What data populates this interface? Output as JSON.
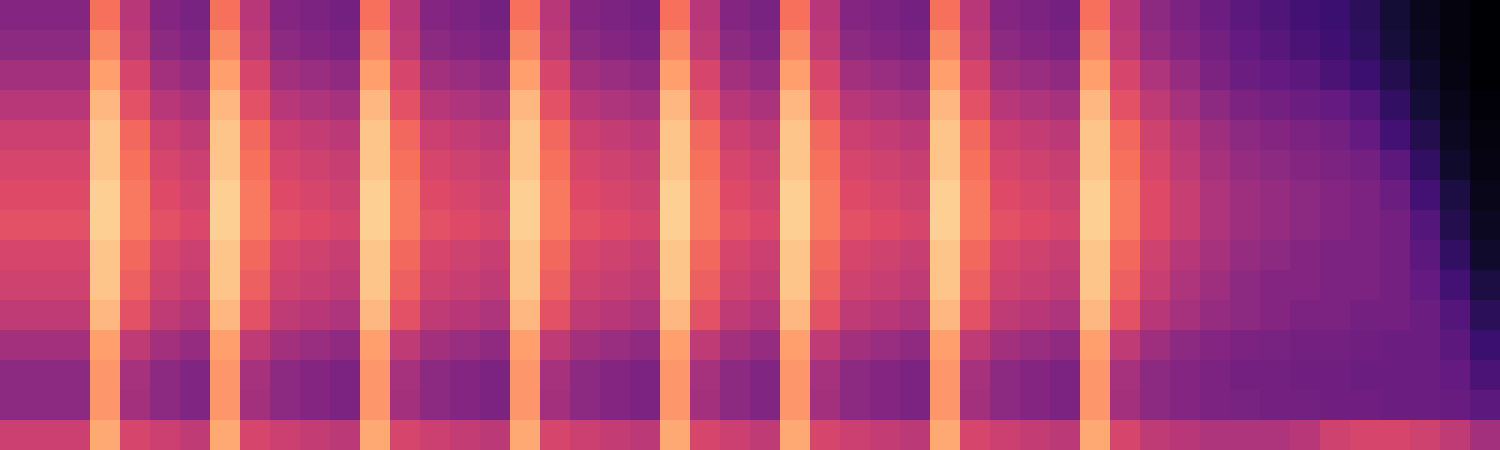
{
  "chart_data": {
    "type": "heatmap",
    "color": "magma",
    "tick_labels": false,
    "xlim": [
      0,
      50
    ],
    "ylim": [
      0,
      15
    ],
    "zlim": [
      0,
      100
    ],
    "cells": [
      [
        38,
        38,
        38,
        70,
        50,
        38,
        35,
        70,
        50,
        38,
        36,
        34,
        70,
        50,
        38,
        36,
        34,
        70,
        50,
        38,
        36,
        34,
        70,
        50,
        38,
        35,
        70,
        50,
        38,
        36,
        34,
        70,
        50,
        38,
        36,
        34,
        70,
        50,
        40,
        36,
        32,
        28,
        25,
        22,
        20,
        16,
        10,
        5,
        2,
        0
      ],
      [
        40,
        40,
        40,
        75,
        52,
        40,
        37,
        75,
        52,
        40,
        38,
        36,
        75,
        52,
        40,
        38,
        36,
        75,
        52,
        40,
        38,
        36,
        75,
        52,
        40,
        37,
        75,
        52,
        40,
        38,
        36,
        75,
        52,
        40,
        38,
        36,
        75,
        52,
        42,
        38,
        34,
        30,
        27,
        24,
        21,
        17,
        11,
        6,
        2,
        0
      ],
      [
        45,
        45,
        45,
        80,
        58,
        45,
        42,
        80,
        58,
        45,
        43,
        41,
        80,
        58,
        45,
        43,
        41,
        80,
        58,
        45,
        43,
        41,
        80,
        58,
        45,
        42,
        80,
        58,
        45,
        43,
        41,
        80,
        58,
        45,
        43,
        41,
        80,
        58,
        48,
        42,
        36,
        32,
        30,
        28,
        24,
        20,
        14,
        8,
        3,
        0
      ],
      [
        50,
        50,
        50,
        85,
        62,
        50,
        47,
        85,
        62,
        50,
        48,
        46,
        85,
        62,
        50,
        48,
        46,
        85,
        62,
        50,
        48,
        46,
        85,
        62,
        50,
        47,
        85,
        62,
        50,
        48,
        46,
        85,
        62,
        50,
        48,
        46,
        85,
        62,
        52,
        46,
        40,
        36,
        34,
        32,
        30,
        26,
        18,
        10,
        4,
        1
      ],
      [
        55,
        55,
        55,
        88,
        68,
        55,
        52,
        88,
        68,
        55,
        53,
        51,
        88,
        68,
        55,
        53,
        51,
        88,
        68,
        55,
        53,
        51,
        88,
        68,
        55,
        52,
        88,
        68,
        55,
        53,
        51,
        88,
        68,
        55,
        53,
        51,
        88,
        68,
        56,
        50,
        44,
        40,
        38,
        36,
        34,
        30,
        22,
        14,
        6,
        2
      ],
      [
        58,
        58,
        58,
        88,
        70,
        58,
        55,
        88,
        70,
        58,
        56,
        54,
        88,
        70,
        58,
        56,
        54,
        88,
        70,
        58,
        56,
        54,
        88,
        70,
        58,
        55,
        88,
        70,
        58,
        56,
        54,
        88,
        70,
        58,
        56,
        54,
        88,
        70,
        58,
        52,
        46,
        42,
        40,
        38,
        36,
        34,
        28,
        18,
        8,
        3
      ],
      [
        60,
        60,
        60,
        90,
        72,
        60,
        57,
        90,
        72,
        60,
        58,
        56,
        90,
        72,
        60,
        58,
        56,
        90,
        72,
        60,
        58,
        56,
        90,
        72,
        60,
        57,
        90,
        72,
        60,
        58,
        56,
        90,
        72,
        60,
        58,
        56,
        90,
        72,
        60,
        54,
        48,
        44,
        42,
        40,
        38,
        36,
        32,
        22,
        12,
        4
      ],
      [
        62,
        62,
        62,
        90,
        72,
        62,
        59,
        90,
        72,
        62,
        60,
        58,
        90,
        72,
        62,
        60,
        58,
        90,
        72,
        62,
        60,
        58,
        90,
        72,
        62,
        59,
        90,
        72,
        62,
        60,
        58,
        90,
        72,
        62,
        60,
        58,
        90,
        72,
        60,
        54,
        48,
        44,
        42,
        40,
        38,
        36,
        34,
        26,
        14,
        6
      ],
      [
        58,
        58,
        58,
        88,
        68,
        58,
        55,
        88,
        68,
        58,
        56,
        54,
        88,
        68,
        58,
        56,
        54,
        88,
        68,
        58,
        56,
        54,
        88,
        68,
        58,
        55,
        88,
        68,
        58,
        56,
        54,
        88,
        68,
        58,
        56,
        54,
        88,
        68,
        56,
        50,
        46,
        42,
        40,
        38,
        36,
        36,
        34,
        28,
        18,
        8
      ],
      [
        56,
        56,
        56,
        88,
        66,
        56,
        53,
        88,
        66,
        56,
        54,
        52,
        88,
        66,
        56,
        54,
        52,
        88,
        66,
        56,
        54,
        52,
        88,
        66,
        56,
        53,
        88,
        66,
        56,
        54,
        52,
        88,
        66,
        56,
        54,
        52,
        88,
        66,
        54,
        48,
        44,
        40,
        38,
        38,
        36,
        36,
        34,
        30,
        22,
        12
      ],
      [
        52,
        52,
        52,
        85,
        62,
        52,
        49,
        85,
        62,
        52,
        50,
        48,
        85,
        62,
        52,
        50,
        48,
        85,
        62,
        52,
        50,
        48,
        85,
        62,
        52,
        49,
        85,
        62,
        52,
        50,
        48,
        85,
        62,
        52,
        50,
        48,
        85,
        62,
        50,
        46,
        42,
        40,
        38,
        36,
        36,
        34,
        34,
        32,
        26,
        16
      ],
      [
        45,
        45,
        45,
        80,
        52,
        45,
        42,
        80,
        52,
        45,
        43,
        41,
        80,
        52,
        45,
        43,
        41,
        80,
        52,
        45,
        43,
        41,
        80,
        52,
        45,
        42,
        80,
        52,
        45,
        43,
        41,
        80,
        52,
        45,
        43,
        41,
        80,
        52,
        44,
        40,
        38,
        36,
        35,
        34,
        34,
        33,
        32,
        32,
        28,
        20
      ],
      [
        40,
        40,
        40,
        78,
        46,
        40,
        37,
        78,
        46,
        40,
        38,
        36,
        78,
        46,
        40,
        38,
        36,
        78,
        46,
        40,
        38,
        36,
        78,
        46,
        40,
        37,
        78,
        46,
        40,
        38,
        36,
        78,
        46,
        40,
        38,
        36,
        78,
        46,
        40,
        38,
        36,
        34,
        34,
        33,
        33,
        32,
        32,
        32,
        30,
        24
      ],
      [
        40,
        40,
        40,
        78,
        45,
        40,
        37,
        78,
        45,
        40,
        38,
        36,
        78,
        45,
        40,
        38,
        36,
        78,
        45,
        40,
        38,
        36,
        78,
        45,
        40,
        37,
        78,
        45,
        40,
        38,
        36,
        78,
        45,
        40,
        38,
        36,
        78,
        45,
        40,
        38,
        36,
        35,
        34,
        34,
        33,
        33,
        32,
        32,
        31,
        28
      ],
      [
        55,
        55,
        55,
        82,
        58,
        55,
        52,
        82,
        58,
        55,
        53,
        51,
        82,
        58,
        55,
        53,
        51,
        82,
        58,
        55,
        53,
        51,
        82,
        58,
        55,
        52,
        82,
        58,
        55,
        53,
        51,
        82,
        58,
        55,
        53,
        51,
        82,
        58,
        52,
        50,
        48,
        48,
        48,
        50,
        56,
        58,
        58,
        56,
        52,
        45
      ]
    ]
  }
}
